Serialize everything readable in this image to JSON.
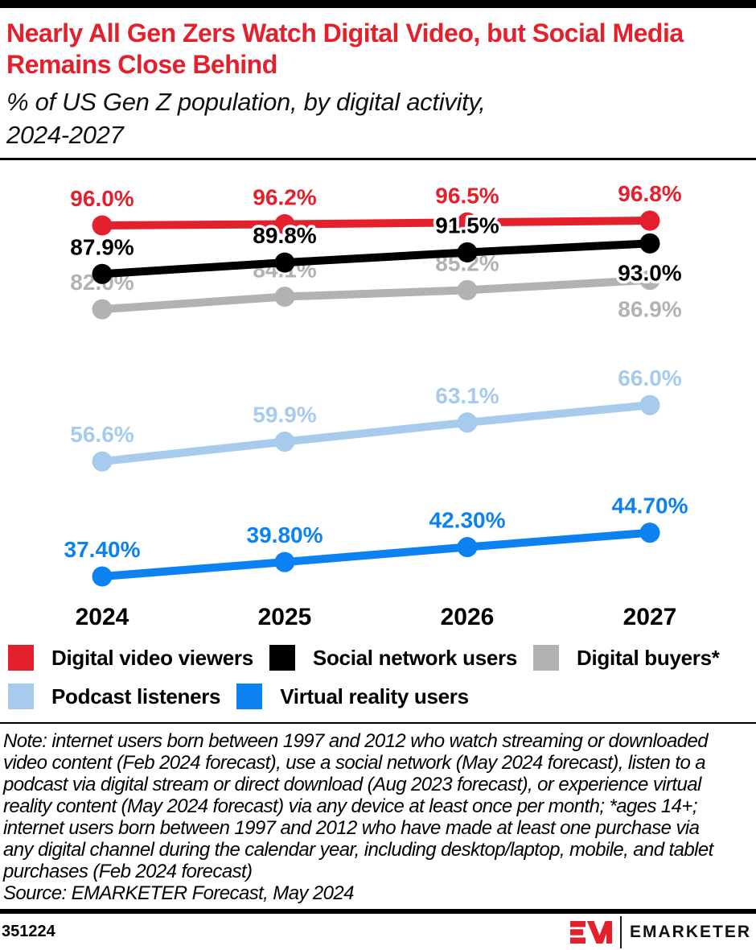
{
  "header": {
    "title": "Nearly All Gen Zers Watch Digital Video, but Social Media Remains Close Behind",
    "subtitle": "% of US Gen Z population, by digital activity,\n2024-2027",
    "title_color": "#e4202c"
  },
  "chart_data": {
    "type": "line",
    "title": "Nearly All Gen Zers Watch Digital Video, but Social Media Remains Close Behind",
    "subtitle": "% of US Gen Z population, by digital activity, 2024-2027",
    "x": [
      "2024",
      "2025",
      "2026",
      "2027"
    ],
    "xlabel": "",
    "ylabel": "% of US Gen Z population",
    "ylim": [
      30,
      100
    ],
    "grid": false,
    "legend_position": "bottom",
    "series": [
      {
        "name": "Digital video viewers",
        "color": "#e4202c",
        "values": [
          96.0,
          96.2,
          96.5,
          96.8
        ],
        "labels": [
          "96.0%",
          "96.2%",
          "96.5%",
          "96.8%"
        ],
        "label_pos": [
          "above",
          "above",
          "above",
          "above"
        ]
      },
      {
        "name": "Social network users",
        "color": "#000000",
        "values": [
          87.9,
          89.8,
          91.5,
          93.0
        ],
        "labels": [
          "87.9%",
          "89.8%",
          "91.5%",
          "93.0%"
        ],
        "label_pos": [
          "above",
          "above",
          "above",
          "below"
        ]
      },
      {
        "name": "Digital buyers*",
        "color": "#b2b2b4",
        "values": [
          82.0,
          84.1,
          85.2,
          86.9
        ],
        "labels": [
          "82.0%",
          "84.1%",
          "85.2%",
          "86.9%"
        ],
        "label_pos": [
          "above",
          "above",
          "above",
          "below"
        ]
      },
      {
        "name": "Podcast listeners",
        "color": "#a7cbed",
        "values": [
          56.6,
          59.9,
          63.1,
          66.0
        ],
        "labels": [
          "56.6%",
          "59.9%",
          "63.1%",
          "66.0%"
        ],
        "label_pos": [
          "above",
          "above",
          "above",
          "above"
        ]
      },
      {
        "name": "Virtual reality users",
        "color": "#0c82f2",
        "values": [
          37.4,
          39.8,
          42.3,
          44.7
        ],
        "labels": [
          "37.40%",
          "39.80%",
          "42.30%",
          "44.70%"
        ],
        "label_pos": [
          "above",
          "above",
          "above",
          "above"
        ]
      }
    ]
  },
  "note": {
    "text": "Note: internet users born between 1997 and 2012 who watch streaming or downloaded video content (Feb 2024 forecast), use a social network (May 2024 forecast), listen to a podcast via digital stream or direct download (Aug 2023 forecast), or experience virtual reality content (May 2024 forecast) via any device at least once per month; *ages 14+; internet users born between 1997 and 2012 who have made at least one purchase via any digital channel during the calendar year, including desktop/laptop, mobile, and tablet purchases (Feb 2024 forecast)",
    "source": "Source: EMARKETER Forecast, May 2024"
  },
  "footer": {
    "chart_id": "351224",
    "brand": "EMARKETER",
    "brand_color": "#e4202c"
  }
}
